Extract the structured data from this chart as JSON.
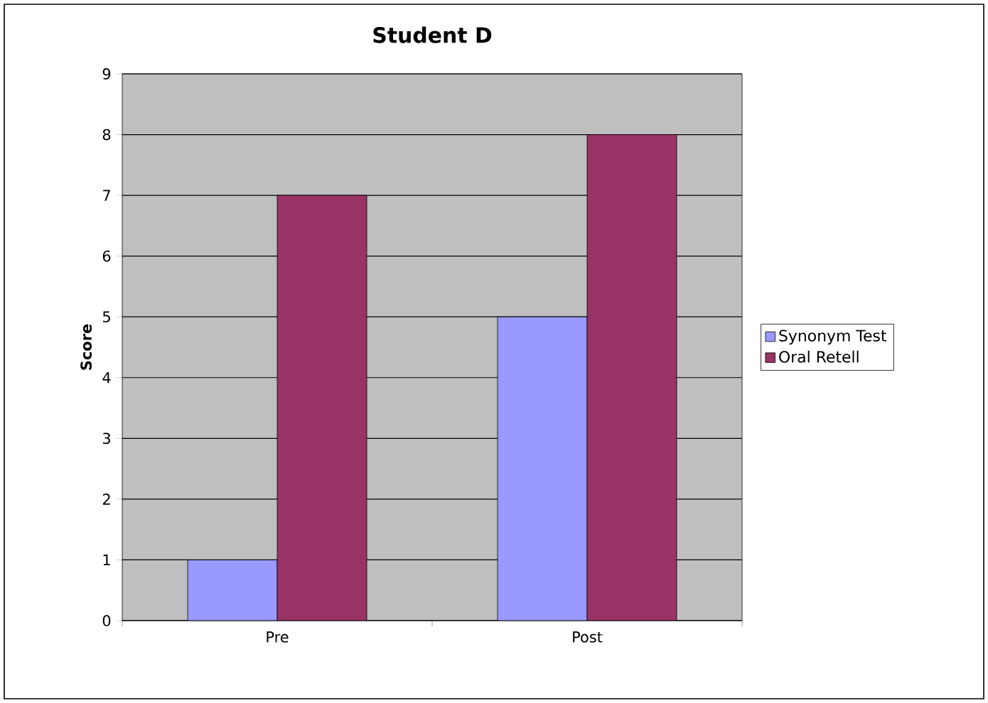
{
  "chart_data": {
    "type": "bar",
    "title": "Student D",
    "ylabel": "Score",
    "categories": [
      "Pre",
      "Post"
    ],
    "series": [
      {
        "name": "Synonym Test",
        "color": "#9999ff",
        "values": [
          1,
          5
        ]
      },
      {
        "name": "Oral Retell",
        "color": "#993366",
        "values": [
          7,
          8
        ]
      }
    ],
    "ylim": [
      0,
      9
    ],
    "yticks": [
      0,
      1,
      2,
      3,
      4,
      5,
      6,
      7,
      8,
      9
    ],
    "grid": "y",
    "legend": "right"
  }
}
